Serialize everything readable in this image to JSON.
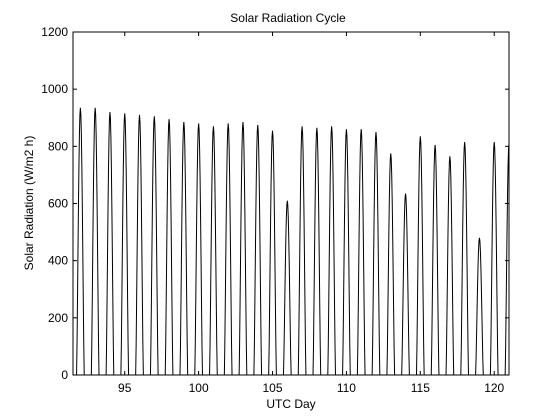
{
  "chart_data": {
    "type": "line",
    "title": "Solar Radiation Cycle",
    "xlabel": "UTC Day",
    "ylabel": "Solar Radiation (W/m2 h)",
    "xlim": [
      91.5,
      121
    ],
    "ylim": [
      0,
      1200
    ],
    "xticks": [
      95,
      100,
      105,
      110,
      115,
      120
    ],
    "yticks": [
      0,
      200,
      400,
      600,
      800,
      1000,
      1200
    ],
    "grid": false,
    "line_color": "#000000",
    "daily_peaks": [
      {
        "day": 92,
        "value": 935
      },
      {
        "day": 93,
        "value": 935
      },
      {
        "day": 94,
        "value": 920
      },
      {
        "day": 95,
        "value": 915
      },
      {
        "day": 96,
        "value": 910
      },
      {
        "day": 97,
        "value": 905
      },
      {
        "day": 98,
        "value": 895
      },
      {
        "day": 99,
        "value": 885
      },
      {
        "day": 100,
        "value": 880
      },
      {
        "day": 101,
        "value": 870
      },
      {
        "day": 102,
        "value": 880
      },
      {
        "day": 103,
        "value": 885
      },
      {
        "day": 104,
        "value": 875
      },
      {
        "day": 105,
        "value": 855
      },
      {
        "day": 106,
        "value": 610
      },
      {
        "day": 107,
        "value": 870
      },
      {
        "day": 108,
        "value": 865
      },
      {
        "day": 109,
        "value": 870
      },
      {
        "day": 110,
        "value": 860
      },
      {
        "day": 111,
        "value": 860
      },
      {
        "day": 112,
        "value": 850
      },
      {
        "day": 113,
        "value": 775
      },
      {
        "day": 114,
        "value": 635
      },
      {
        "day": 115,
        "value": 835
      },
      {
        "day": 116,
        "value": 805
      },
      {
        "day": 117,
        "value": 765
      },
      {
        "day": 118,
        "value": 815
      },
      {
        "day": 119,
        "value": 480
      },
      {
        "day": 120,
        "value": 815
      },
      {
        "day": 121,
        "value": 810
      }
    ]
  }
}
